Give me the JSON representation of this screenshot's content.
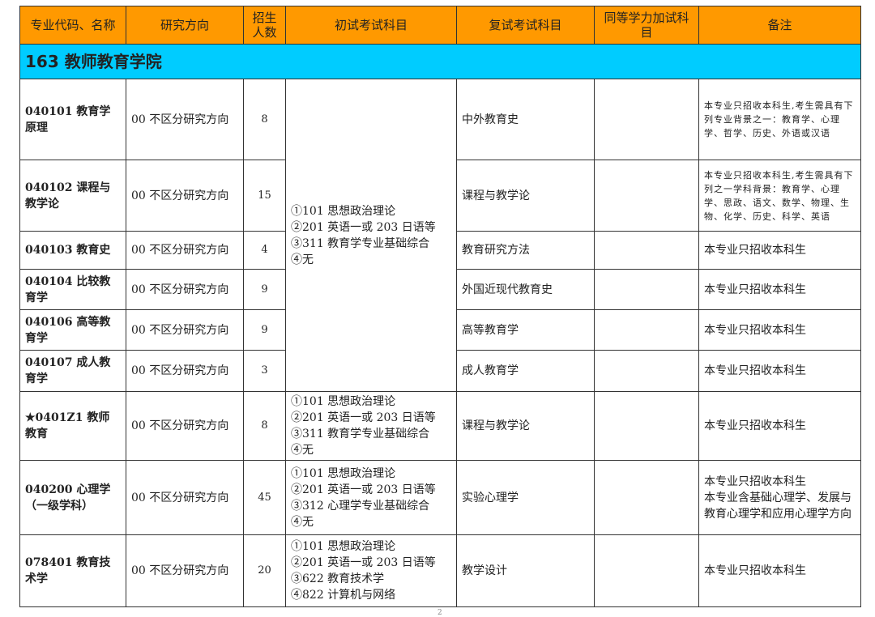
{
  "header": [
    "专业代码、名称",
    "研究方向",
    "招生人数",
    "初试考试科目",
    "复试考试科目",
    "同等学力加试科目",
    "备注"
  ],
  "section": "163 教师教育学院",
  "shared_exam": [
    "①101 思想政治理论",
    "②201 英语一或 203 日语等",
    "③311 教育学专业基础综合",
    "④无"
  ],
  "rows": [
    {
      "code": "040101 教育学原理",
      "dir": "00 不区分研究方向",
      "num": "8",
      "retest": "中外教育史",
      "extra": "",
      "note": "本专业只招收本科生,考生需具有下列专业背景之一：教育学、心理学、哲学、历史、外语或汉语"
    },
    {
      "code": "040102 课程与教学论",
      "dir": "00 不区分研究方向",
      "num": "15",
      "retest": "课程与教学论",
      "extra": "",
      "note": "本专业只招收本科生,考生需具有下列之一学科背景：教育学、心理学、思政、语文、数学、物理、生物、化学、历史、科学、英语"
    },
    {
      "code": "040103 教育史",
      "dir": "00 不区分研究方向",
      "num": "4",
      "retest": "教育研究方法",
      "extra": "",
      "note": "本专业只招收本科生"
    },
    {
      "code": "040104 比较教育学",
      "dir": "00 不区分研究方向",
      "num": "9",
      "retest": "外国近现代教育史",
      "extra": "",
      "note": "本专业只招收本科生"
    },
    {
      "code": "040106 高等教育学",
      "dir": "00 不区分研究方向",
      "num": "9",
      "retest": "高等教育学",
      "extra": "",
      "note": "本专业只招收本科生"
    },
    {
      "code": "040107 成人教育学",
      "dir": "00 不区分研究方向",
      "num": "3",
      "retest": "成人教育学",
      "extra": "",
      "note": "本专业只招收本科生"
    },
    {
      "code": "★0401Z1 教师教育",
      "dir": "00 不区分研究方向",
      "num": "8",
      "exam": [
        "①101 思想政治理论",
        "②201 英语一或 203 日语等",
        "③311 教育学专业基础综合",
        "④无"
      ],
      "retest": "课程与教学论",
      "extra": "",
      "note": "本专业只招收本科生"
    },
    {
      "code": "040200 心理学（一级学科）",
      "dir": "00 不区分研究方向",
      "num": "45",
      "exam": [
        "①101 思想政治理论",
        "②201 英语一或 203 日语等",
        "③312 心理学专业基础综合",
        "④无"
      ],
      "retest": "实验心理学",
      "extra": "",
      "note_lines": [
        "本专业只招收本科生",
        "本专业含基础心理学、发展与教育心理学和应用心理学方向"
      ]
    },
    {
      "code": "078401 教育技术学",
      "dir": "00 不区分研究方向",
      "num": "20",
      "exam": [
        "①101 思想政治理论",
        "②201 英语一或 203 日语等",
        "③622 教育技术学",
        "④822 计算机与网络"
      ],
      "retest": "教学设计",
      "extra": "",
      "note": "本专业只招收本科生"
    }
  ],
  "page_number": "2"
}
